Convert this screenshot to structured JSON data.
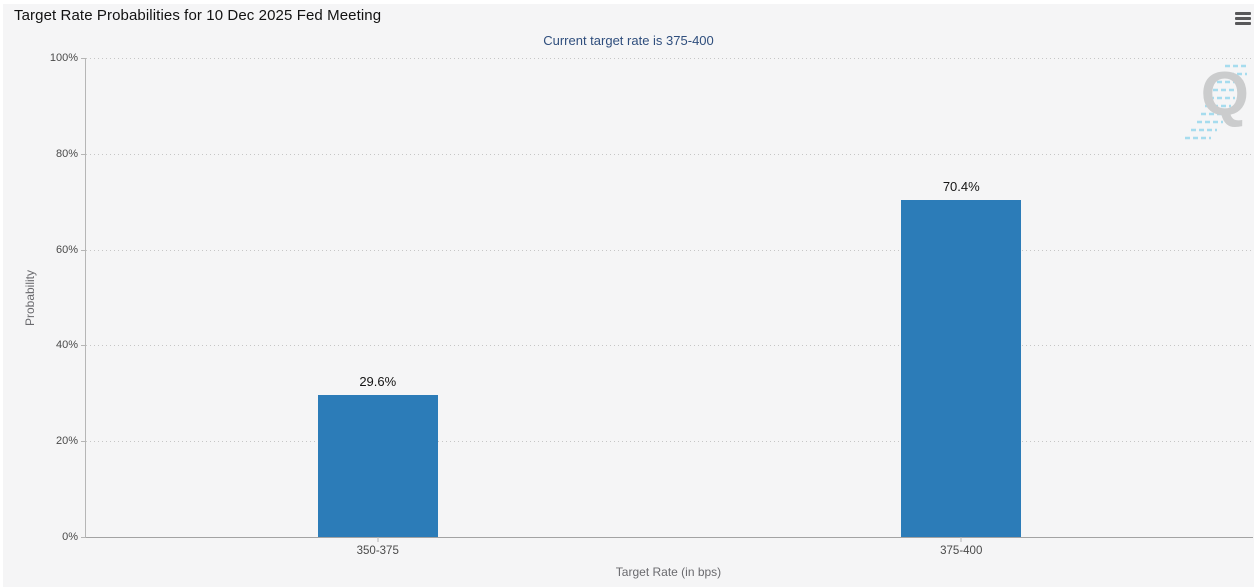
{
  "header": {
    "menu_icon": "hamburger-icon"
  },
  "watermark": {
    "letter": "Q"
  },
  "colors": {
    "background": "#f5f5f6",
    "bar": "#2c7cb8",
    "subtitle_text": "#2f4e7d",
    "gridline": "#c6c6c6",
    "axis_line": "#a3a3a3",
    "watermark_q": "#cbcccd",
    "watermark_hatch": "#a6dcee"
  },
  "chart_data": {
    "type": "bar",
    "title": "Target Rate Probabilities for 10 Dec 2025 Fed Meeting",
    "subtitle": "Current target rate is 375-400",
    "xlabel": "Target Rate (in bps)",
    "ylabel": "Probability",
    "categories": [
      "350-375",
      "375-400"
    ],
    "values": [
      29.6,
      70.4
    ],
    "value_labels": [
      "29.6%",
      "70.4%"
    ],
    "ylim": [
      0,
      100
    ],
    "yticks": [
      "0%",
      "20%",
      "40%",
      "60%",
      "80%",
      "100%"
    ],
    "grid": "dotted horizontal gridlines at 20% intervals",
    "legend": "none",
    "bar_color": "#2c7cb8"
  }
}
